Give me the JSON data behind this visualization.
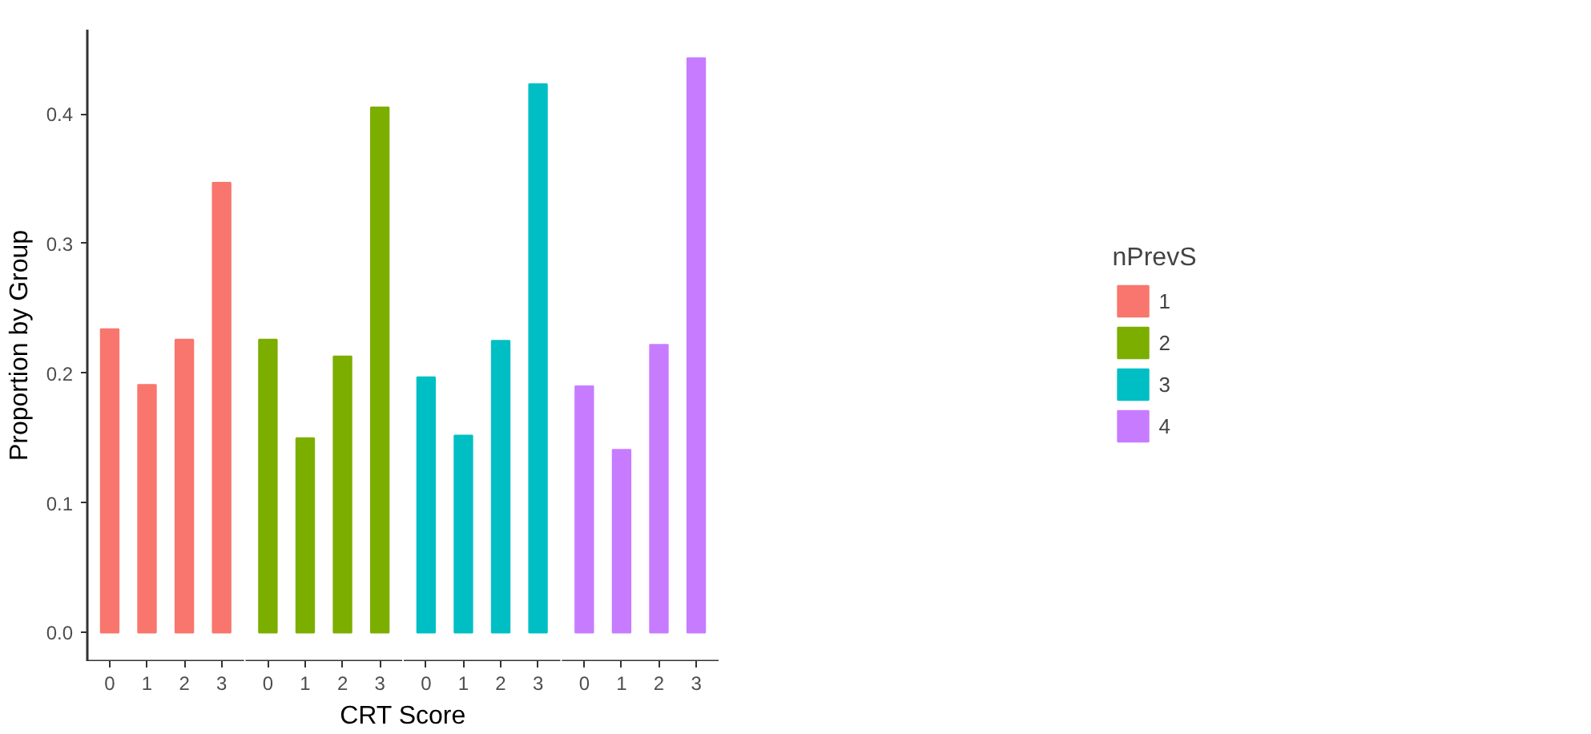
{
  "chart_data": {
    "type": "bar",
    "xlabel": "CRT Score",
    "ylabel": "Proportion by Group",
    "legend_title": "nPrevS",
    "legend": "right",
    "grid": false,
    "categories": [
      "0",
      "1",
      "2",
      "3",
      "0",
      "1",
      "2",
      "3",
      "0",
      "1",
      "2",
      "3",
      "0",
      "1",
      "2",
      "3"
    ],
    "ylim": [
      -0.022,
      0.465
    ],
    "yticks": [
      {
        "value": 0,
        "label": "0.0"
      },
      0.1,
      0.2,
      0.3,
      0.4
    ],
    "series": [
      {
        "name": "1",
        "color": "#f8766d",
        "values": [
          0.234,
          0.191,
          0.226,
          0.347,
          null,
          null,
          null,
          null,
          null,
          null,
          null,
          null,
          null,
          null,
          null,
          null
        ]
      },
      {
        "name": "2",
        "color": "#7cae00",
        "values": [
          null,
          null,
          null,
          null,
          0.226,
          0.15,
          0.213,
          0.405,
          null,
          null,
          null,
          null,
          null,
          null,
          null,
          null
        ]
      },
      {
        "name": "3",
        "color": "#00bfc4",
        "values": [
          null,
          null,
          null,
          null,
          null,
          null,
          null,
          null,
          0.197,
          0.152,
          0.225,
          0.423,
          null,
          null,
          null,
          null
        ]
      },
      {
        "name": "4",
        "color": "#c77cff",
        "values": [
          null,
          null,
          null,
          null,
          null,
          null,
          null,
          null,
          null,
          null,
          null,
          null,
          0.19,
          0.141,
          0.222,
          0.443
        ]
      }
    ]
  }
}
